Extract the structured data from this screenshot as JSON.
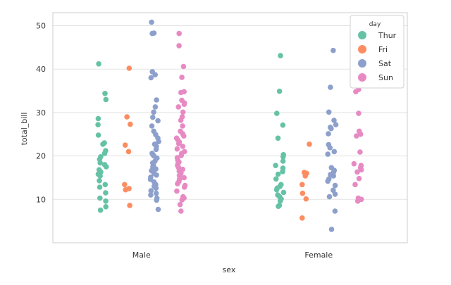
{
  "chart_data": {
    "type": "strip",
    "xlabel": "sex",
    "ylabel": "total_bill",
    "categories": [
      "Male",
      "Female"
    ],
    "ylim": [
      0,
      53
    ],
    "yticks": [
      10,
      20,
      30,
      40,
      50
    ],
    "grid": true,
    "legend": {
      "title": "day",
      "position": "top-right",
      "entries": [
        {
          "label": "Thur",
          "color": "#66c2a5"
        },
        {
          "label": "Fri",
          "color": "#fc8d62"
        },
        {
          "label": "Sat",
          "color": "#8da0cb"
        },
        {
          "label": "Sun",
          "color": "#e78ac3"
        }
      ]
    },
    "series": [
      {
        "name": "Thur",
        "color": "#66c2a5",
        "data": {
          "Male": [
            41.2,
            34.4,
            33.0,
            28.6,
            27.2,
            24.8,
            23.0,
            22.7,
            21.2,
            20.6,
            19.8,
            19.2,
            18.4,
            18.0,
            17.5,
            16.8,
            16.3,
            15.8,
            15.4,
            14.3,
            13.4,
            12.8,
            11.5,
            10.3,
            9.6,
            8.3,
            7.5
          ],
          "Female": [
            43.1,
            34.9,
            29.8,
            27.1,
            24.1,
            20.3,
            19.8,
            18.8,
            17.8,
            17.2,
            16.4,
            15.8,
            14.7,
            13.4,
            13.0,
            12.6,
            12.2,
            11.6,
            11.0,
            10.6,
            10.1,
            9.6,
            8.6,
            8.4
          ]
        }
      },
      {
        "name": "Fri",
        "color": "#fc8d62",
        "data": {
          "Male": [
            40.2,
            29.0,
            27.3,
            22.5,
            21.0,
            13.4,
            12.5,
            12.2,
            8.6
          ],
          "Female": [
            22.7,
            16.2,
            16.0,
            15.4,
            13.4,
            11.4,
            10.1,
            5.7
          ]
        }
      },
      {
        "name": "Sat",
        "color": "#8da0cb",
        "data": {
          "Male": [
            50.8,
            48.3,
            48.2,
            39.4,
            38.7,
            38.0,
            32.9,
            31.3,
            30.1,
            28.9,
            28.1,
            26.9,
            25.7,
            24.9,
            24.1,
            23.3,
            22.7,
            22.2,
            21.5,
            20.6,
            20.3,
            20.0,
            19.5,
            18.8,
            18.4,
            17.9,
            17.5,
            17.0,
            16.6,
            16.0,
            15.6,
            15.1,
            14.6,
            14.0,
            13.4,
            13.0,
            12.6,
            12.0,
            11.4,
            11.0,
            10.3,
            9.8,
            7.7
          ],
          "Female": [
            44.3,
            35.8,
            30.1,
            28.2,
            27.2,
            26.6,
            26.3,
            25.1,
            22.6,
            21.9,
            21.0,
            20.4,
            17.3,
            16.7,
            16.3,
            15.7,
            15.4,
            14.7,
            14.2,
            13.2,
            12.1,
            11.2,
            10.6,
            7.3,
            3.1
          ]
        }
      },
      {
        "name": "Sun",
        "color": "#e78ac3",
        "data": {
          "Male": [
            48.2,
            45.4,
            40.6,
            38.1,
            34.8,
            34.6,
            32.8,
            32.2,
            31.9,
            31.3,
            30.1,
            29.0,
            28.2,
            26.9,
            25.7,
            25.1,
            24.6,
            24.1,
            23.7,
            23.2,
            22.8,
            22.2,
            21.6,
            21.0,
            20.6,
            20.1,
            19.6,
            19.1,
            18.6,
            18.2,
            17.8,
            17.3,
            16.9,
            16.5,
            16.0,
            15.5,
            15.0,
            14.6,
            14.1,
            13.6,
            13.2,
            12.8,
            11.9,
            10.6,
            10.3,
            9.9,
            8.8,
            7.3
          ],
          "Female": [
            35.3,
            34.8,
            29.8,
            25.7,
            25.0,
            24.6,
            20.9,
            18.2,
            17.8,
            17.3,
            16.8,
            16.3,
            14.8,
            13.4,
            10.3,
            10.0,
            9.6
          ]
        }
      }
    ]
  }
}
